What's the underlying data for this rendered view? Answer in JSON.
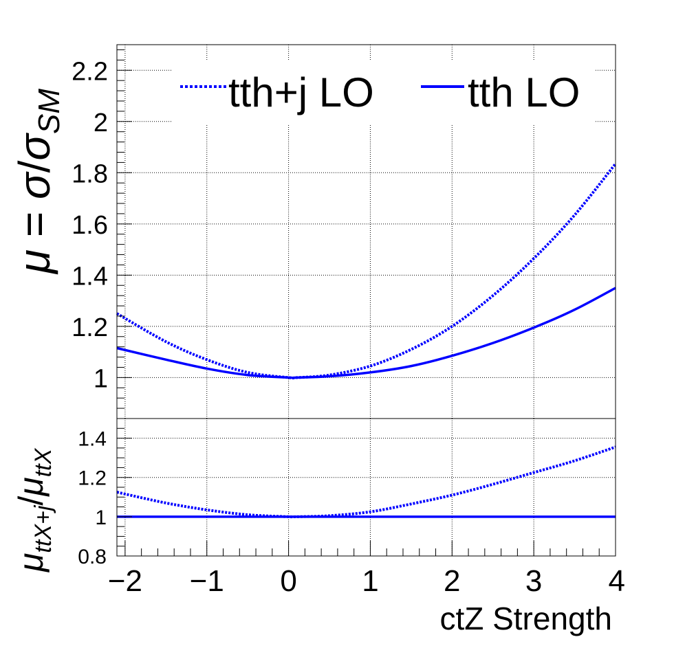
{
  "colors": {
    "series": "#0000ff",
    "grid": "#000000",
    "axis": "#000000"
  },
  "chart_data": [
    {
      "type": "line",
      "panel": "main",
      "ylabel": "μ = σ/σSM",
      "ylabel_parts": {
        "mu": "μ",
        "eq": " = ",
        "sigma": "σ",
        "slash": "/",
        "sigma2": "σ",
        "sub": "SM"
      },
      "xlim": [
        -2.1,
        4.0
      ],
      "ylim": [
        0.84,
        2.3
      ],
      "yticks": [
        1,
        1.2,
        1.4,
        1.6,
        1.8,
        2,
        2.2
      ],
      "ytick_labels": [
        "1",
        "1.2",
        "1.4",
        "1.6",
        "1.8",
        "2",
        "2.2"
      ],
      "grid": true,
      "legend": {
        "placement": "top"
      },
      "series": [
        {
          "name": "tth+j LO",
          "style": "dotted",
          "x": [
            -2.1,
            -1.5,
            -1,
            -0.5,
            0,
            0.1,
            0.5,
            1,
            1.5,
            2,
            2.5,
            3,
            3.5,
            4
          ],
          "y": [
            1.25,
            1.14,
            1.07,
            1.02,
            1.0,
            1.0,
            1.01,
            1.045,
            1.11,
            1.2,
            1.32,
            1.465,
            1.635,
            1.835
          ]
        },
        {
          "name": "tth LO",
          "style": "solid",
          "x": [
            -2.1,
            -1.5,
            -1,
            -0.5,
            0,
            0.1,
            0.5,
            1,
            1.5,
            2,
            2.5,
            3,
            3.5,
            4
          ],
          "y": [
            1.115,
            1.07,
            1.035,
            1.01,
            1.0,
            1.0,
            1.005,
            1.02,
            1.045,
            1.085,
            1.135,
            1.195,
            1.265,
            1.35
          ]
        }
      ]
    },
    {
      "type": "line",
      "panel": "ratio",
      "ylabel": "μttX+j/μttX",
      "ylabel_parts": {
        "mu": "μ",
        "sub1": "ttX+j",
        "slash": "/",
        "mu2": "μ",
        "sub2": "ttX"
      },
      "xlabel": "ctZ Strength",
      "xlim": [
        -2.1,
        4.0
      ],
      "ylim": [
        0.8,
        1.5
      ],
      "yticks": [
        0.8,
        1,
        1.2,
        1.4
      ],
      "ytick_labels": [
        "0.8",
        "1",
        "1.2",
        "1.4"
      ],
      "xticks": [
        -2,
        -1,
        0,
        1,
        2,
        3,
        4
      ],
      "xtick_labels": [
        "−2",
        "−1",
        "0",
        "1",
        "2",
        "3",
        "4"
      ],
      "grid": true,
      "series": [
        {
          "name": "tth+j LO",
          "style": "dotted",
          "x": [
            -2.1,
            -1.5,
            -1,
            -0.5,
            0,
            0.1,
            0.5,
            1,
            1.5,
            2,
            2.5,
            3,
            3.5,
            4
          ],
          "y": [
            1.125,
            1.07,
            1.035,
            1.01,
            1.0,
            1.0,
            1.005,
            1.025,
            1.065,
            1.11,
            1.165,
            1.225,
            1.285,
            1.355
          ]
        },
        {
          "name": "tth LO",
          "style": "solid",
          "x": [
            -2.1,
            4
          ],
          "y": [
            1.0,
            1.0
          ]
        }
      ]
    }
  ]
}
